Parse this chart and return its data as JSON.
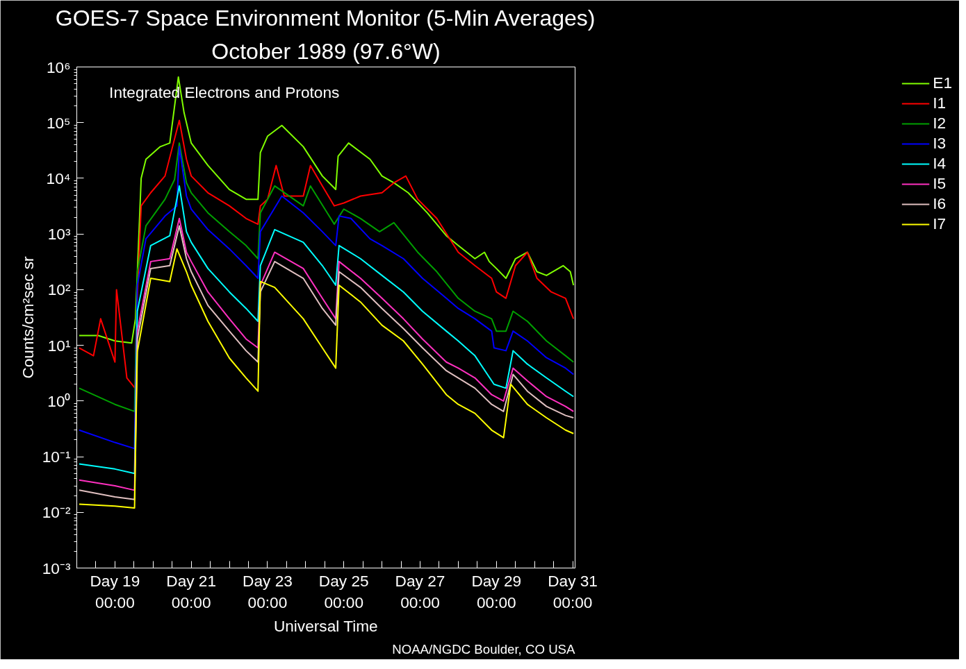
{
  "chart_data": {
    "type": "line",
    "title": "GOES-7 Space Environment Monitor (5-Min Averages)",
    "subtitle": "October 1989 (97.6°W)",
    "xlabel": "Universal Time",
    "ylabel": "Counts/cm²sec sr",
    "annotations": [
      "Integrated Electrons and Protons",
      "NOAA/NGDC Boulder, CO USA"
    ],
    "log": true,
    "grid": false,
    "legend": "right",
    "line_style": "solid",
    "marker": "none",
    "xlim": [
      "1989-10-18T00:00",
      "1989-10-31T01:30"
    ],
    "xticks": [
      {
        "value": "1989-10-18T12:00",
        "label": null
      },
      {
        "value": "1989-10-19T00:00",
        "label": "Day 19\n00:00"
      },
      {
        "value": "1989-10-19T12:00",
        "label": null
      },
      {
        "value": "1989-10-20T00:00",
        "label": null
      },
      {
        "value": "1989-10-20T12:00",
        "label": null
      },
      {
        "value": "1989-10-21T00:00",
        "label": "Day 21\n00:00"
      },
      {
        "value": "1989-10-21T12:00",
        "label": null
      },
      {
        "value": "1989-10-22T00:00",
        "label": null
      },
      {
        "value": "1989-10-22T12:00",
        "label": null
      },
      {
        "value": "1989-10-23T00:00",
        "label": "Day 23\n00:00"
      },
      {
        "value": "1989-10-23T12:00",
        "label": null
      },
      {
        "value": "1989-10-24T00:00",
        "label": null
      },
      {
        "value": "1989-10-24T12:00",
        "label": null
      },
      {
        "value": "1989-10-25T00:00",
        "label": "Day 25\n00:00"
      },
      {
        "value": "1989-10-25T12:00",
        "label": null
      },
      {
        "value": "1989-10-26T00:00",
        "label": null
      },
      {
        "value": "1989-10-26T12:00",
        "label": null
      },
      {
        "value": "1989-10-27T00:00",
        "label": "Day 27\n00:00"
      },
      {
        "value": "1989-10-27T12:00",
        "label": null
      },
      {
        "value": "1989-10-28T00:00",
        "label": null
      },
      {
        "value": "1989-10-28T12:00",
        "label": null
      },
      {
        "value": "1989-10-29T00:00",
        "label": "Day 29\n00:00"
      },
      {
        "value": "1989-10-29T12:00",
        "label": null
      },
      {
        "value": "1989-10-30T00:00",
        "label": null
      },
      {
        "value": "1989-10-30T12:00",
        "label": null
      },
      {
        "value": "1989-10-31T00:00",
        "label": "Day 31\n00:00"
      }
    ],
    "ylim": [
      0.001,
      1000000
    ],
    "yticks": [
      {
        "value": 0.001,
        "label": "10⁻³"
      },
      {
        "value": 0.01,
        "label": "10⁻²"
      },
      {
        "value": 0.1,
        "label": "10⁻¹"
      },
      {
        "value": 1,
        "label": "10⁰"
      },
      {
        "value": 10,
        "label": "10¹"
      },
      {
        "value": 100,
        "label": "10²"
      },
      {
        "value": 1000,
        "label": "10³"
      },
      {
        "value": 10000,
        "label": "10⁴"
      },
      {
        "value": 100000,
        "label": "10⁵"
      },
      {
        "value": 1000000,
        "label": "10⁶"
      }
    ],
    "series": [
      {
        "name": "E1",
        "color": "#80ff00",
        "x": [
          "1989-10-18T01:30",
          "1989-10-18T13:30",
          "1989-10-19T00:00",
          "1989-10-19T10:30",
          "1989-10-19T12:55",
          "1989-10-19T16:30",
          "1989-10-19T19:30",
          "1989-10-20T04:30",
          "1989-10-20T10:30",
          "1989-10-20T15:55",
          "1989-10-20T19:30",
          "1989-10-21T00:00",
          "1989-10-21T10:30",
          "1989-10-22T00:00",
          "1989-10-22T10:30",
          "1989-10-22T18:00",
          "1989-10-22T19:30",
          "1989-10-23T00:00",
          "1989-10-23T09:00",
          "1989-10-23T22:30",
          "1989-10-24T10:30",
          "1989-10-24T18:55",
          "1989-10-24T20:25",
          "1989-10-25T03:00",
          "1989-10-25T16:30",
          "1989-10-26T00:00",
          "1989-10-26T07:30",
          "1989-10-26T16:30",
          "1989-10-27T04:30",
          "1989-10-27T16:30",
          "1989-10-28T00:00",
          "1989-10-28T10:30",
          "1989-10-28T16:30",
          "1989-10-28T19:30",
          "1989-10-29T00:00",
          "1989-10-29T06:00",
          "1989-10-29T12:00",
          "1989-10-29T19:30",
          "1989-10-30T01:30",
          "1989-10-30T07:30",
          "1989-10-30T18:00",
          "1989-10-30T22:30",
          "1989-10-31T00:30"
        ],
        "values": [
          15,
          15,
          12,
          11,
          30,
          10000,
          22000,
          37000,
          43000,
          660000,
          150000,
          43000,
          17000,
          6300,
          4200,
          4200,
          29000,
          57000,
          89000,
          37000,
          11000,
          6300,
          25000,
          43000,
          22000,
          11000,
          8300,
          5500,
          2400,
          930,
          620,
          360,
          470,
          320,
          240,
          160,
          360,
          470,
          210,
          180,
          270,
          210,
          120
        ]
      },
      {
        "name": "I1",
        "color": "#ff0000",
        "x": [
          "1989-10-18T01:30",
          "1989-10-18T10:30",
          "1989-10-18T15:00",
          "1989-10-19T00:00",
          "1989-10-19T01:00",
          "1989-10-19T07:30",
          "1989-10-19T12:40",
          "1989-10-19T13:30",
          "1989-10-19T16:30",
          "1989-10-19T22:30",
          "1989-10-20T07:30",
          "1989-10-20T16:30",
          "1989-10-20T21:00",
          "1989-10-21T00:00",
          "1989-10-21T10:30",
          "1989-10-22T00:00",
          "1989-10-22T10:30",
          "1989-10-22T18:00",
          "1989-10-22T19:30",
          "1989-10-23T00:00",
          "1989-10-23T05:25",
          "1989-10-23T10:30",
          "1989-10-23T22:30",
          "1989-10-24T03:00",
          "1989-10-24T10:30",
          "1989-10-24T18:00",
          "1989-10-25T00:00",
          "1989-10-25T10:30",
          "1989-10-26T00:00",
          "1989-10-26T07:30",
          "1989-10-26T15:00",
          "1989-10-26T22:30",
          "1989-10-27T10:30",
          "1989-10-28T00:00",
          "1989-10-28T10:30",
          "1989-10-28T21:00",
          "1989-10-29T00:00",
          "1989-10-29T06:00",
          "1989-10-29T12:00",
          "1989-10-29T19:30",
          "1989-10-30T01:30",
          "1989-10-30T10:30",
          "1989-10-30T19:30",
          "1989-10-31T00:30"
        ],
        "values": [
          9,
          6.5,
          30,
          5,
          100,
          2.6,
          1.7,
          30,
          3200,
          5500,
          11000,
          110000,
          22000,
          11000,
          5500,
          3200,
          1900,
          1500,
          3200,
          4200,
          17000,
          4800,
          4800,
          17000,
          7300,
          3200,
          3600,
          4800,
          5500,
          8300,
          11000,
          4200,
          1900,
          470,
          270,
          160,
          91,
          70,
          270,
          470,
          160,
          91,
          70,
          30
        ]
      },
      {
        "name": "I2",
        "color": "#00a000",
        "x": [
          "1989-10-18T01:30",
          "1989-10-19T00:00",
          "1989-10-19T12:20",
          "1989-10-19T14:05",
          "1989-10-19T19:30",
          "1989-10-20T07:30",
          "1989-10-20T13:30",
          "1989-10-20T16:30",
          "1989-10-20T21:00",
          "1989-10-21T00:00",
          "1989-10-21T10:30",
          "1989-10-22T00:00",
          "1989-10-22T10:30",
          "1989-10-22T18:00",
          "1989-10-22T19:30",
          "1989-10-23T04:30",
          "1989-10-23T22:30",
          "1989-10-24T03:00",
          "1989-10-24T18:00",
          "1989-10-25T00:00",
          "1989-10-25T10:30",
          "1989-10-25T22:30",
          "1989-10-26T07:30",
          "1989-10-26T22:30",
          "1989-10-27T10:30",
          "1989-10-28T00:00",
          "1989-10-28T10:30",
          "1989-10-28T21:00",
          "1989-10-29T00:00",
          "1989-10-29T06:00",
          "1989-10-29T10:30",
          "1989-10-29T19:30",
          "1989-10-30T07:30",
          "1989-10-30T19:30",
          "1989-10-31T00:30"
        ],
        "values": [
          1.7,
          0.87,
          0.65,
          210,
          1400,
          4200,
          9500,
          43000,
          8300,
          5500,
          2400,
          1100,
          620,
          360,
          2400,
          7300,
          3200,
          7300,
          1500,
          2800,
          1900,
          1100,
          1600,
          470,
          210,
          70,
          41,
          30,
          18,
          18,
          41,
          27,
          12,
          6.5,
          5
        ]
      },
      {
        "name": "I3",
        "color": "#0000ff",
        "x": [
          "1989-10-18T01:30",
          "1989-10-19T00:00",
          "1989-10-19T12:20",
          "1989-10-19T14:05",
          "1989-10-19T19:30",
          "1989-10-20T07:30",
          "1989-10-20T15:00",
          "1989-10-20T16:30",
          "1989-10-20T21:00",
          "1989-10-21T00:00",
          "1989-10-21T10:30",
          "1989-10-22T00:00",
          "1989-10-22T10:30",
          "1989-10-22T18:00",
          "1989-10-22T19:30",
          "1989-10-23T09:00",
          "1989-10-23T22:30",
          "1989-10-24T10:30",
          "1989-10-24T18:55",
          "1989-10-24T21:00",
          "1989-10-25T04:30",
          "1989-10-25T16:30",
          "1989-10-26T00:00",
          "1989-10-26T13:30",
          "1989-10-27T01:30",
          "1989-10-27T16:30",
          "1989-10-28T00:00",
          "1989-10-28T10:30",
          "1989-10-28T21:00",
          "1989-10-28T22:30",
          "1989-10-29T06:00",
          "1989-10-29T10:30",
          "1989-10-29T19:30",
          "1989-10-30T07:30",
          "1989-10-30T19:30",
          "1989-10-31T00:30"
        ],
        "values": [
          0.3,
          0.18,
          0.14,
          120,
          820,
          2100,
          3200,
          37000,
          4800,
          2800,
          1200,
          540,
          270,
          160,
          1100,
          4800,
          2400,
          1100,
          620,
          2100,
          1900,
          820,
          620,
          360,
          160,
          70,
          46,
          30,
          18,
          9,
          8,
          18,
          12,
          6,
          3.9,
          3
        ]
      },
      {
        "name": "I4",
        "color": "#00ffff",
        "x": [
          "1989-10-18T01:30",
          "1989-10-19T00:00",
          "1989-10-19T12:20",
          "1989-10-19T14:05",
          "1989-10-19T22:30",
          "1989-10-20T10:30",
          "1989-10-20T16:30",
          "1989-10-20T21:00",
          "1989-10-21T00:00",
          "1989-10-21T10:30",
          "1989-10-22T00:00",
          "1989-10-22T10:30",
          "1989-10-22T18:00",
          "1989-10-22T19:30",
          "1989-10-23T04:30",
          "1989-10-23T22:30",
          "1989-10-24T10:30",
          "1989-10-24T18:55",
          "1989-10-24T21:00",
          "1989-10-25T10:30",
          "1989-10-26T00:00",
          "1989-10-26T13:30",
          "1989-10-27T01:30",
          "1989-10-27T16:30",
          "1989-10-28T00:00",
          "1989-10-28T10:30",
          "1989-10-28T22:30",
          "1989-10-29T06:00",
          "1989-10-29T10:30",
          "1989-10-29T19:30",
          "1989-10-30T07:30",
          "1989-10-30T19:30",
          "1989-10-31T00:30"
        ],
        "values": [
          0.074,
          0.06,
          0.05,
          41,
          620,
          930,
          7300,
          1100,
          710,
          240,
          91,
          46,
          27,
          270,
          1200,
          710,
          270,
          120,
          620,
          360,
          180,
          91,
          41,
          18,
          12,
          6.5,
          2,
          1.7,
          8,
          4.6,
          2.6,
          1.5,
          1.2
        ]
      },
      {
        "name": "I5",
        "color": "#ff30c0",
        "x": [
          "1989-10-18T01:30",
          "1989-10-19T00:00",
          "1989-10-19T12:20",
          "1989-10-19T14:05",
          "1989-10-19T22:30",
          "1989-10-20T10:30",
          "1989-10-20T16:30",
          "1989-10-20T21:00",
          "1989-10-21T00:00",
          "1989-10-21T10:30",
          "1989-10-22T00:00",
          "1989-10-22T10:30",
          "1989-10-22T18:00",
          "1989-10-22T19:30",
          "1989-10-23T04:30",
          "1989-10-23T22:30",
          "1989-10-24T10:30",
          "1989-10-24T18:55",
          "1989-10-24T21:00",
          "1989-10-25T10:30",
          "1989-10-26T00:00",
          "1989-10-26T13:30",
          "1989-10-27T01:30",
          "1989-10-27T16:30",
          "1989-10-28T00:00",
          "1989-10-28T10:30",
          "1989-10-28T21:00",
          "1989-10-29T04:30",
          "1989-10-29T10:30",
          "1989-10-29T19:30",
          "1989-10-30T07:30",
          "1989-10-30T19:30",
          "1989-10-31T00:30"
        ],
        "values": [
          0.038,
          0.03,
          0.025,
          18,
          320,
          360,
          1900,
          470,
          320,
          91,
          30,
          13,
          9,
          120,
          470,
          240,
          70,
          30,
          320,
          160,
          70,
          30,
          13,
          5,
          3.9,
          2.6,
          1.3,
          1,
          3.9,
          2.3,
          1.2,
          0.8,
          0.65
        ]
      },
      {
        "name": "I6",
        "color": "#e0c0c0",
        "x": [
          "1989-10-18T01:30",
          "1989-10-19T00:00",
          "1989-10-19T12:20",
          "1989-10-19T14:05",
          "1989-10-19T22:30",
          "1989-10-20T10:30",
          "1989-10-20T16:30",
          "1989-10-20T21:00",
          "1989-10-21T00:00",
          "1989-10-21T10:30",
          "1989-10-22T00:00",
          "1989-10-22T10:30",
          "1989-10-22T18:00",
          "1989-10-22T19:30",
          "1989-10-23T04:30",
          "1989-10-23T22:30",
          "1989-10-24T10:30",
          "1989-10-24T18:55",
          "1989-10-24T21:00",
          "1989-10-25T10:30",
          "1989-10-26T00:00",
          "1989-10-26T13:30",
          "1989-10-27T01:30",
          "1989-10-27T16:30",
          "1989-10-28T00:00",
          "1989-10-28T10:30",
          "1989-10-28T21:00",
          "1989-10-29T04:30",
          "1989-10-29T10:30",
          "1989-10-29T19:30",
          "1989-10-30T07:30",
          "1989-10-30T19:30",
          "1989-10-31T00:30"
        ],
        "values": [
          0.025,
          0.019,
          0.017,
          13,
          240,
          270,
          1400,
          360,
          210,
          52,
          18,
          8,
          5,
          91,
          320,
          160,
          46,
          23,
          210,
          110,
          46,
          20,
          9,
          3.5,
          2.6,
          1.7,
          0.87,
          0.65,
          3,
          1.5,
          0.8,
          0.55,
          0.5
        ]
      },
      {
        "name": "I7",
        "color": "#ffff00",
        "x": [
          "1989-10-18T01:30",
          "1989-10-19T00:00",
          "1989-10-19T12:20",
          "1989-10-19T14:05",
          "1989-10-19T22:30",
          "1989-10-20T10:30",
          "1989-10-20T15:00",
          "1989-10-20T21:00",
          "1989-10-21T00:00",
          "1989-10-21T10:30",
          "1989-10-22T00:00",
          "1989-10-22T10:30",
          "1989-10-22T18:00",
          "1989-10-22T19:30",
          "1989-10-23T04:30",
          "1989-10-23T22:30",
          "1989-10-24T10:30",
          "1989-10-24T18:55",
          "1989-10-24T21:00",
          "1989-10-25T10:30",
          "1989-10-26T00:00",
          "1989-10-26T13:30",
          "1989-10-27T01:30",
          "1989-10-27T16:30",
          "1989-10-28T00:00",
          "1989-10-28T10:30",
          "1989-10-28T21:00",
          "1989-10-29T04:30",
          "1989-10-29T09:00",
          "1989-10-29T19:30",
          "1989-10-30T07:30",
          "1989-10-30T19:30",
          "1989-10-31T00:30"
        ],
        "values": [
          0.014,
          0.013,
          0.012,
          7.7,
          160,
          140,
          540,
          210,
          120,
          27,
          5.9,
          2.6,
          1.5,
          140,
          110,
          30,
          9,
          3.9,
          120,
          60,
          23,
          12,
          4.6,
          1.3,
          0.87,
          0.6,
          0.3,
          0.22,
          2,
          0.87,
          0.5,
          0.3,
          0.26
        ]
      }
    ]
  }
}
